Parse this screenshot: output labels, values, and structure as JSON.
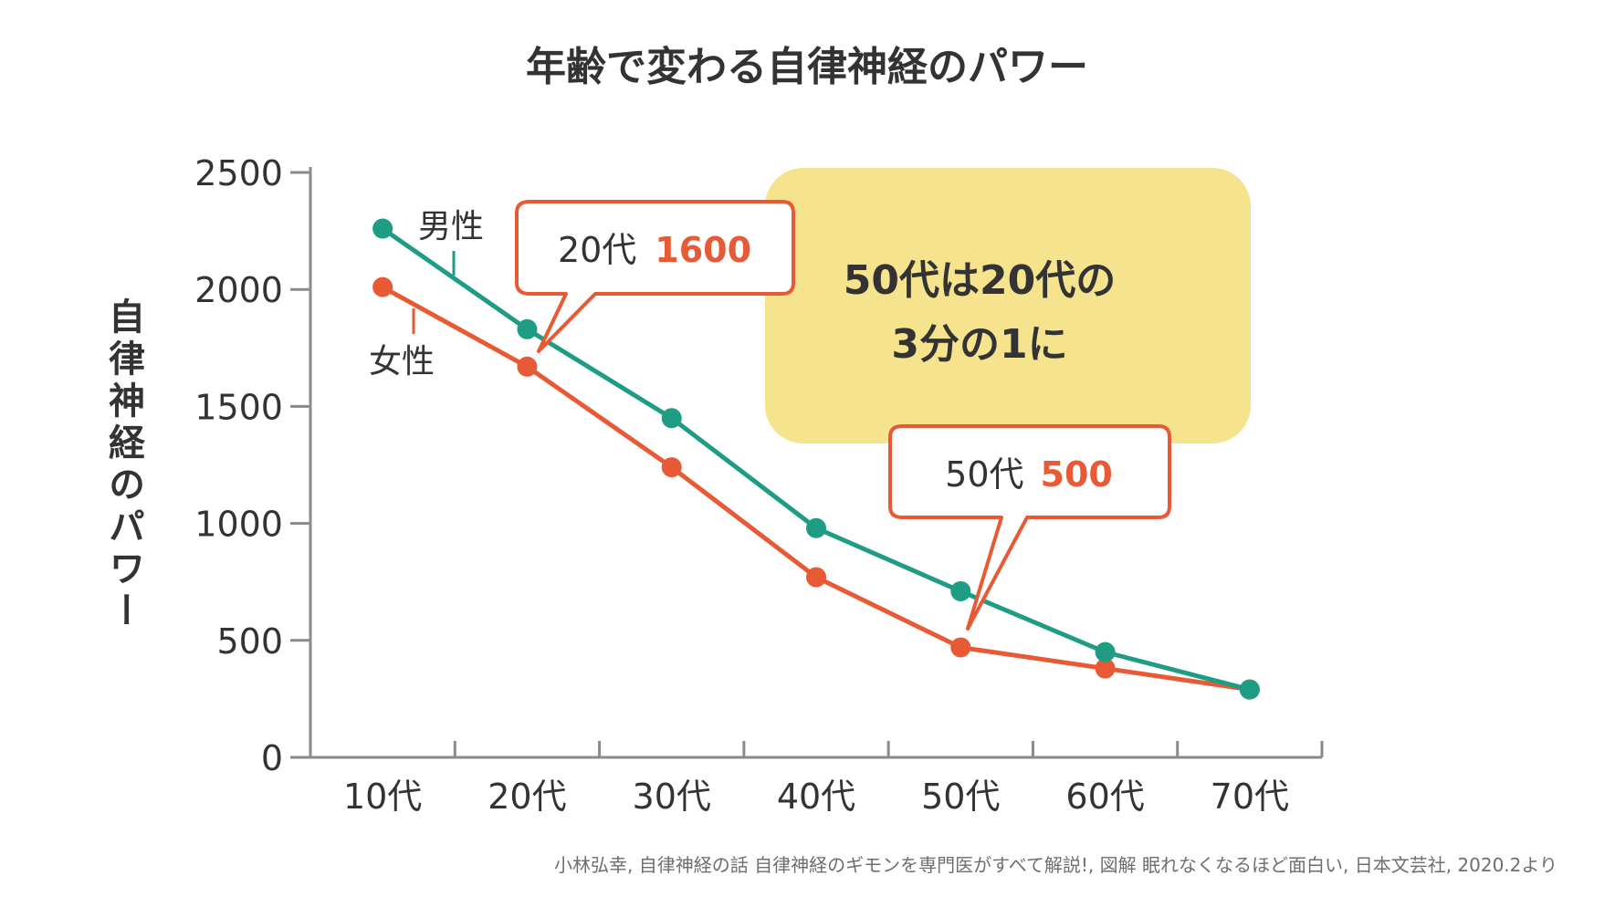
{
  "colors": {
    "male": "#1E9C84",
    "female": "#E75A35",
    "axis": "#8A8A8A",
    "text": "#333333",
    "note_fill": "#F6E38D",
    "source_text": "#6E6E6E"
  },
  "chart_data": {
    "type": "line",
    "title": "年齢で変わる自律神経のパワー",
    "ylabel": "自律神経のパワー",
    "xlabel": "",
    "ylim": [
      0,
      2500
    ],
    "yticks": [
      "0",
      "500",
      "1000",
      "1500",
      "2000",
      "2500"
    ],
    "categories": [
      "10代",
      "20代",
      "30代",
      "40代",
      "50代",
      "60代",
      "70代"
    ],
    "series": [
      {
        "name": "男性",
        "color_key": "male",
        "values": [
          2260,
          1830,
          1450,
          980,
          710,
          450,
          290
        ]
      },
      {
        "name": "女性",
        "color_key": "female",
        "values": [
          2010,
          1670,
          1240,
          770,
          470,
          380,
          290
        ]
      }
    ],
    "grid": false,
    "legend": "inline labels near series start",
    "annotations": {
      "callout_20": {
        "label": "20代",
        "value": "1600"
      },
      "callout_50": {
        "label": "50代",
        "value": "500"
      },
      "note": {
        "line1": "50代は20代の",
        "line2": "3分の1に"
      }
    }
  },
  "source": "小林弘幸, 自律神経の話 自律神経のギモンを専門医がすべて解説!, 図解 眠れなくなるほど面白い, 日本文芸社, 2020.2より"
}
